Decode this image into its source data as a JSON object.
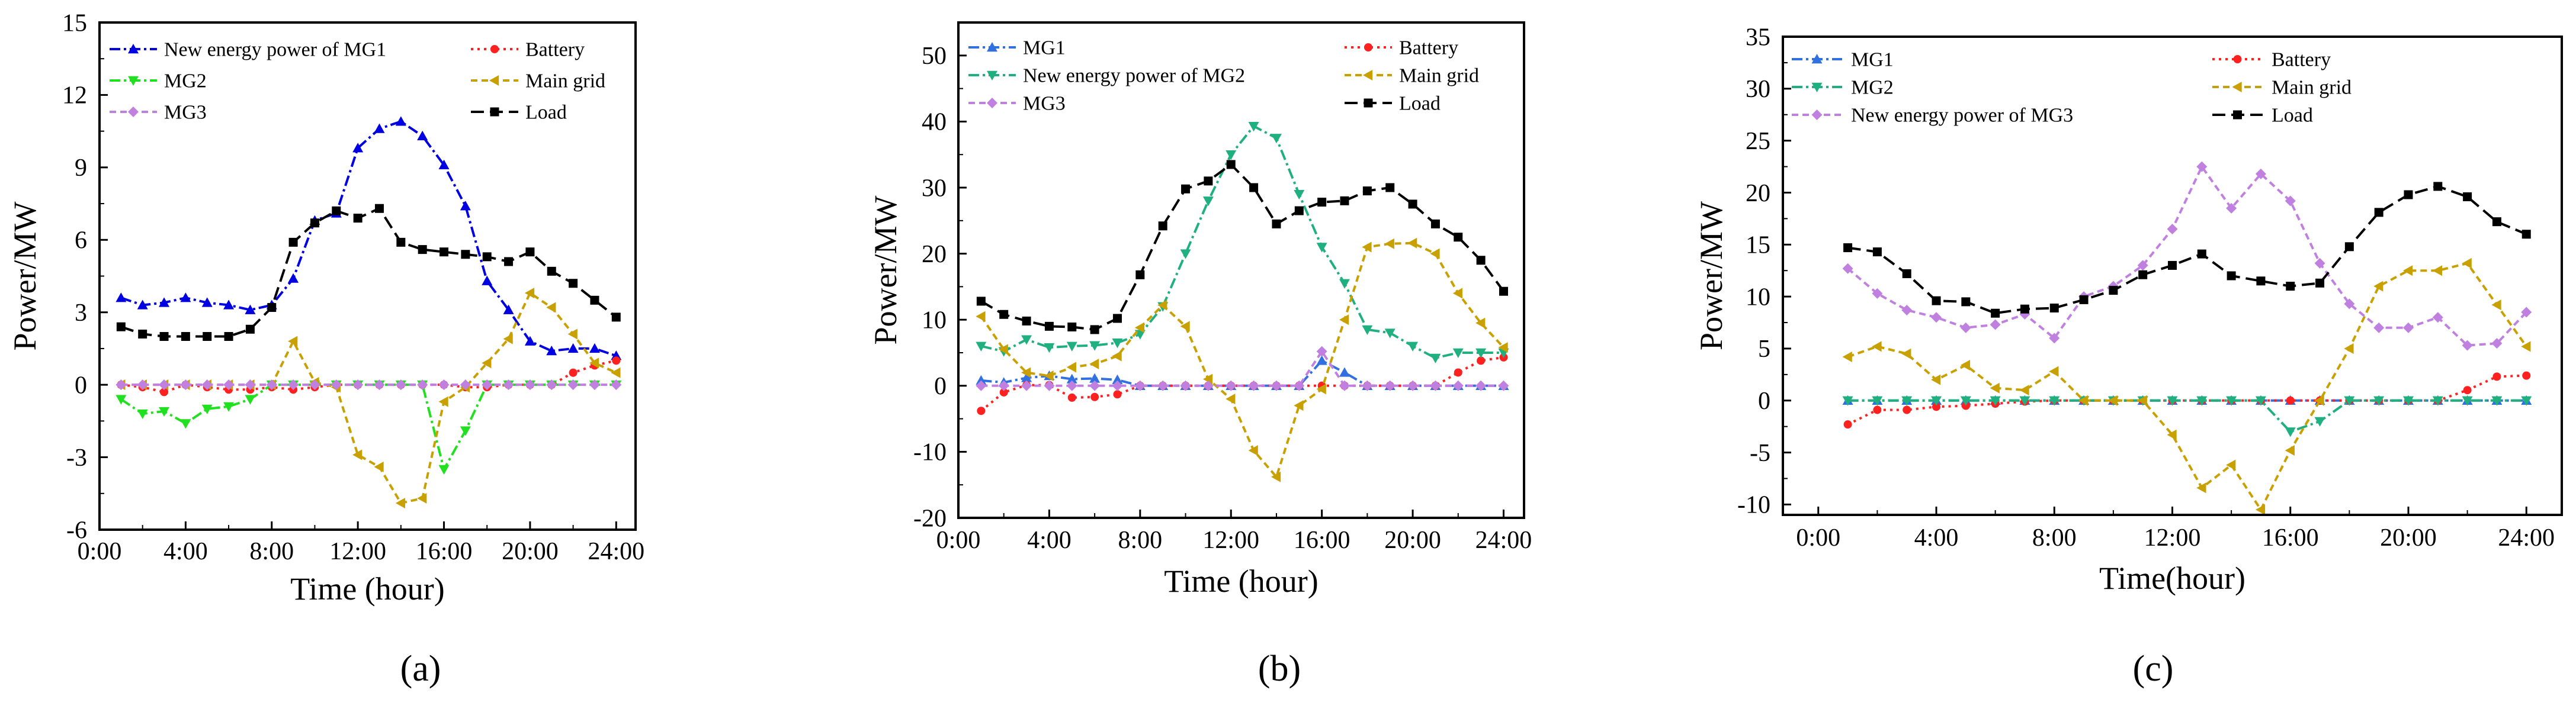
{
  "chart_data": [
    {
      "type": "line",
      "caption": "(a)",
      "xlabel": "Time (hour)",
      "ylabel": "Power/MW",
      "xlim": [
        0,
        24.9
      ],
      "ylim": [
        -6,
        15
      ],
      "xticks": [
        0,
        4,
        8,
        12,
        16,
        20,
        24
      ],
      "xtick_labels": [
        "0:00",
        "4:00",
        "8:00",
        "12:00",
        "16:00",
        "20:00",
        "24:00"
      ],
      "yticks": [
        -6,
        -3,
        0,
        3,
        6,
        9,
        12,
        15
      ],
      "ytick_labels": [
        "-6",
        "-3",
        "0",
        "3",
        "6",
        "9",
        "12",
        "15"
      ],
      "x": [
        1,
        2,
        3,
        4,
        5,
        6,
        7,
        8,
        9,
        10,
        11,
        12,
        13,
        14,
        15,
        16,
        17,
        18,
        19,
        20,
        21,
        22,
        23,
        24
      ],
      "series": [
        {
          "name": "New energy power of MG1",
          "color": "#0000e0",
          "marker": "triangle",
          "dash": "dashdot",
          "values": [
            3.6,
            3.3,
            3.4,
            3.6,
            3.4,
            3.3,
            3.1,
            3.3,
            4.4,
            6.8,
            7.1,
            9.8,
            10.6,
            10.9,
            10.3,
            9.1,
            7.4,
            4.3,
            3.1,
            1.8,
            1.4,
            1.5,
            1.5,
            1.2
          ]
        },
        {
          "name": "Battery",
          "color": "#ff2020",
          "marker": "circle",
          "dash": "dot",
          "values": [
            0,
            -0.1,
            -0.3,
            0,
            -0.1,
            -0.2,
            -0.2,
            -0.1,
            -0.2,
            -0.1,
            0,
            0,
            0,
            0,
            0,
            0,
            -0.1,
            -0.1,
            0,
            0,
            0,
            0.5,
            0.8,
            1.0
          ]
        },
        {
          "name": "MG2",
          "color": "#20e020",
          "marker": "triangle-down",
          "dash": "dashdot",
          "values": [
            -0.6,
            -1.2,
            -1.1,
            -1.6,
            -1.0,
            -0.9,
            -0.6,
            0,
            0,
            0,
            0,
            0,
            0,
            0,
            0,
            -3.5,
            -1.9,
            0,
            0,
            0,
            0,
            0,
            0,
            0
          ]
        },
        {
          "name": "Main grid",
          "color": "#c8a000",
          "marker": "triangle-left",
          "dash": "dash",
          "values": [
            0,
            0,
            0,
            0,
            0,
            0,
            0,
            0,
            1.8,
            0.1,
            -0.1,
            -2.9,
            -3.4,
            -4.9,
            -4.7,
            -0.7,
            -0.1,
            0.9,
            1.9,
            3.8,
            3.2,
            2.1,
            0.9,
            0.5
          ]
        },
        {
          "name": "MG3",
          "color": "#c080e0",
          "marker": "diamond",
          "dash": "dash",
          "values": [
            0,
            0,
            0,
            0,
            0,
            0,
            0,
            0,
            0,
            0,
            0,
            0,
            0,
            0,
            0,
            0,
            0,
            0,
            0,
            0,
            0,
            0,
            0,
            0
          ]
        },
        {
          "name": "Load",
          "color": "#000000",
          "marker": "square",
          "dash": "longdash",
          "values": [
            2.4,
            2.1,
            2.0,
            2.0,
            2.0,
            2.0,
            2.3,
            3.2,
            5.9,
            6.7,
            7.2,
            6.9,
            7.3,
            5.9,
            5.6,
            5.5,
            5.4,
            5.3,
            5.1,
            5.5,
            4.7,
            4.2,
            3.5,
            2.8
          ]
        }
      ],
      "legend_order": [
        "New energy power of MG1",
        "Battery",
        "MG2",
        "Main grid",
        "MG3",
        "Load"
      ],
      "legend_position": "top-left"
    },
    {
      "type": "line",
      "caption": "(b)",
      "xlabel": "Time (hour)",
      "ylabel": "Power/MW",
      "xlim": [
        0,
        24.9
      ],
      "ylim": [
        -20,
        55
      ],
      "xticks": [
        0,
        4,
        8,
        12,
        16,
        20,
        24
      ],
      "xtick_labels": [
        "0:00",
        "4:00",
        "8:00",
        "12:00",
        "16:00",
        "20:00",
        "24:00"
      ],
      "yticks": [
        -20,
        -10,
        0,
        10,
        20,
        30,
        40,
        50
      ],
      "ytick_labels": [
        "-20",
        "-10",
        "0",
        "10",
        "20",
        "30",
        "40",
        "50"
      ],
      "x": [
        1,
        2,
        3,
        4,
        5,
        6,
        7,
        8,
        9,
        10,
        11,
        12,
        13,
        14,
        15,
        16,
        17,
        18,
        19,
        20,
        21,
        22,
        23,
        24
      ],
      "series": [
        {
          "name": "MG1",
          "color": "#3070e0",
          "marker": "triangle",
          "dash": "dashdot",
          "values": [
            0.8,
            0.5,
            1.2,
            1.5,
            1.0,
            1.1,
            0.9,
            0,
            0,
            0,
            0,
            0,
            0,
            0,
            0,
            3.8,
            2.0,
            0,
            0,
            0,
            0,
            0,
            0,
            0
          ]
        },
        {
          "name": "Battery",
          "color": "#ff2020",
          "marker": "circle",
          "dash": "dot",
          "values": [
            -3.8,
            -1.0,
            0.1,
            0.1,
            -1.8,
            -1.7,
            -1.3,
            0,
            0,
            0,
            0,
            0,
            0,
            0,
            0,
            0,
            0,
            0,
            0,
            0,
            0,
            2.0,
            3.8,
            4.3
          ]
        },
        {
          "name": "New energy power of MG2",
          "color": "#20b080",
          "marker": "triangle-down",
          "dash": "dashdot",
          "values": [
            6.0,
            5.2,
            7.0,
            5.8,
            6.0,
            6.1,
            6.5,
            7.8,
            12.0,
            20.0,
            28.0,
            35.0,
            39.3,
            37.5,
            29.0,
            21.0,
            15.5,
            8.5,
            8.0,
            6.0,
            4.2,
            5.0,
            5.0,
            5.0
          ]
        },
        {
          "name": "Main grid",
          "color": "#c8a000",
          "marker": "triangle-left",
          "dash": "dash",
          "values": [
            10.5,
            5.5,
            2.0,
            1.5,
            2.8,
            3.3,
            4.5,
            8.8,
            12.2,
            9.0,
            1.0,
            -2.0,
            -9.8,
            -13.8,
            -3.0,
            -0.5,
            10.0,
            21.0,
            21.5,
            21.6,
            20.0,
            14.0,
            9.5,
            5.8
          ]
        },
        {
          "name": "MG3",
          "color": "#c080e0",
          "marker": "diamond",
          "dash": "dash",
          "values": [
            0,
            0,
            0,
            0,
            0,
            0,
            0,
            0,
            0,
            0,
            0,
            0,
            0,
            0,
            0,
            5.2,
            0,
            0,
            0,
            0,
            0,
            0,
            0,
            0
          ]
        },
        {
          "name": "Load",
          "color": "#000000",
          "marker": "square",
          "dash": "longdash",
          "values": [
            12.8,
            10.8,
            9.8,
            9.0,
            8.9,
            8.5,
            10.2,
            16.8,
            24.2,
            29.8,
            31.0,
            33.5,
            30.0,
            24.5,
            26.5,
            27.8,
            28.0,
            29.5,
            30.0,
            27.5,
            24.5,
            22.5,
            19.0,
            14.3
          ]
        }
      ],
      "legend_order": [
        "MG1",
        "Battery",
        "New energy power of MG2",
        "Main grid",
        "MG3",
        "Load"
      ],
      "legend_position": "top-left"
    },
    {
      "type": "line",
      "caption": "(c)",
      "xlabel": "Time(hour)",
      "ylabel": "Power/MW",
      "xlim": [
        -1.2,
        25.2
      ],
      "ylim": [
        -11,
        35
      ],
      "xticks": [
        0,
        4,
        8,
        12,
        16,
        20,
        24
      ],
      "xtick_labels": [
        "0:00",
        "4:00",
        "8:00",
        "12:00",
        "16:00",
        "20:00",
        "24:00"
      ],
      "yticks": [
        -10,
        -5,
        0,
        5,
        10,
        15,
        20,
        25,
        30,
        35
      ],
      "ytick_labels": [
        "-10",
        "-5",
        "0",
        "5",
        "10",
        "15",
        "20",
        "25",
        "30",
        "35"
      ],
      "x": [
        1,
        2,
        3,
        4,
        5,
        6,
        7,
        8,
        9,
        10,
        11,
        12,
        13,
        14,
        15,
        16,
        17,
        18,
        19,
        20,
        21,
        22,
        23,
        24
      ],
      "series": [
        {
          "name": "MG1",
          "color": "#3070e0",
          "marker": "triangle",
          "dash": "dashdot",
          "values": [
            0,
            0,
            0,
            0,
            0,
            0,
            0,
            0,
            0,
            0,
            0,
            0,
            0,
            0,
            0,
            0,
            0,
            0,
            0,
            0,
            0,
            0,
            0,
            0
          ]
        },
        {
          "name": "Battery",
          "color": "#ff2020",
          "marker": "circle",
          "dash": "dot",
          "values": [
            -2.3,
            -0.9,
            -0.9,
            -0.6,
            -0.5,
            -0.3,
            -0.1,
            0,
            0,
            0,
            0,
            0,
            0,
            0,
            0,
            0,
            0,
            0,
            0,
            0,
            0,
            1.0,
            2.3,
            2.4
          ]
        },
        {
          "name": "MG2",
          "color": "#20b080",
          "marker": "triangle-down",
          "dash": "dashdot",
          "values": [
            0,
            0,
            0,
            0,
            0,
            0,
            0,
            0,
            0,
            0,
            0,
            0,
            0,
            0,
            0,
            -3.0,
            -2.0,
            0,
            0,
            0,
            0,
            0,
            0,
            0
          ]
        },
        {
          "name": "Main grid",
          "color": "#c8a000",
          "marker": "triangle-left",
          "dash": "dash",
          "values": [
            4.2,
            5.2,
            4.5,
            2.0,
            3.4,
            1.2,
            1.0,
            2.8,
            0,
            0,
            0,
            -3.3,
            -8.4,
            -6.2,
            -10.5,
            -4.8,
            0,
            5.0,
            11.0,
            12.5,
            12.5,
            13.2,
            9.2,
            5.2
          ]
        },
        {
          "name": "New energy power of MG3",
          "color": "#c080e0",
          "marker": "diamond",
          "dash": "dash",
          "values": [
            12.7,
            10.3,
            8.7,
            8.0,
            7.0,
            7.3,
            8.3,
            6.0,
            10.0,
            11.0,
            13.0,
            16.5,
            22.5,
            18.5,
            21.8,
            19.2,
            13.2,
            9.3,
            7.0,
            7.0,
            8.0,
            5.3,
            5.5,
            8.5
          ]
        },
        {
          "name": "Load",
          "color": "#000000",
          "marker": "square",
          "dash": "longdash",
          "values": [
            14.7,
            14.3,
            12.2,
            9.6,
            9.5,
            8.4,
            8.8,
            8.9,
            9.7,
            10.6,
            12.1,
            13.0,
            14.1,
            12.0,
            11.5,
            11.0,
            11.3,
            14.8,
            18.1,
            19.8,
            20.6,
            19.6,
            17.2,
            16.0
          ]
        }
      ],
      "legend_order": [
        "MG1",
        "Battery",
        "MG2",
        "Main grid",
        "New energy power of MG3",
        "Load"
      ],
      "legend_position": "top-left"
    }
  ]
}
